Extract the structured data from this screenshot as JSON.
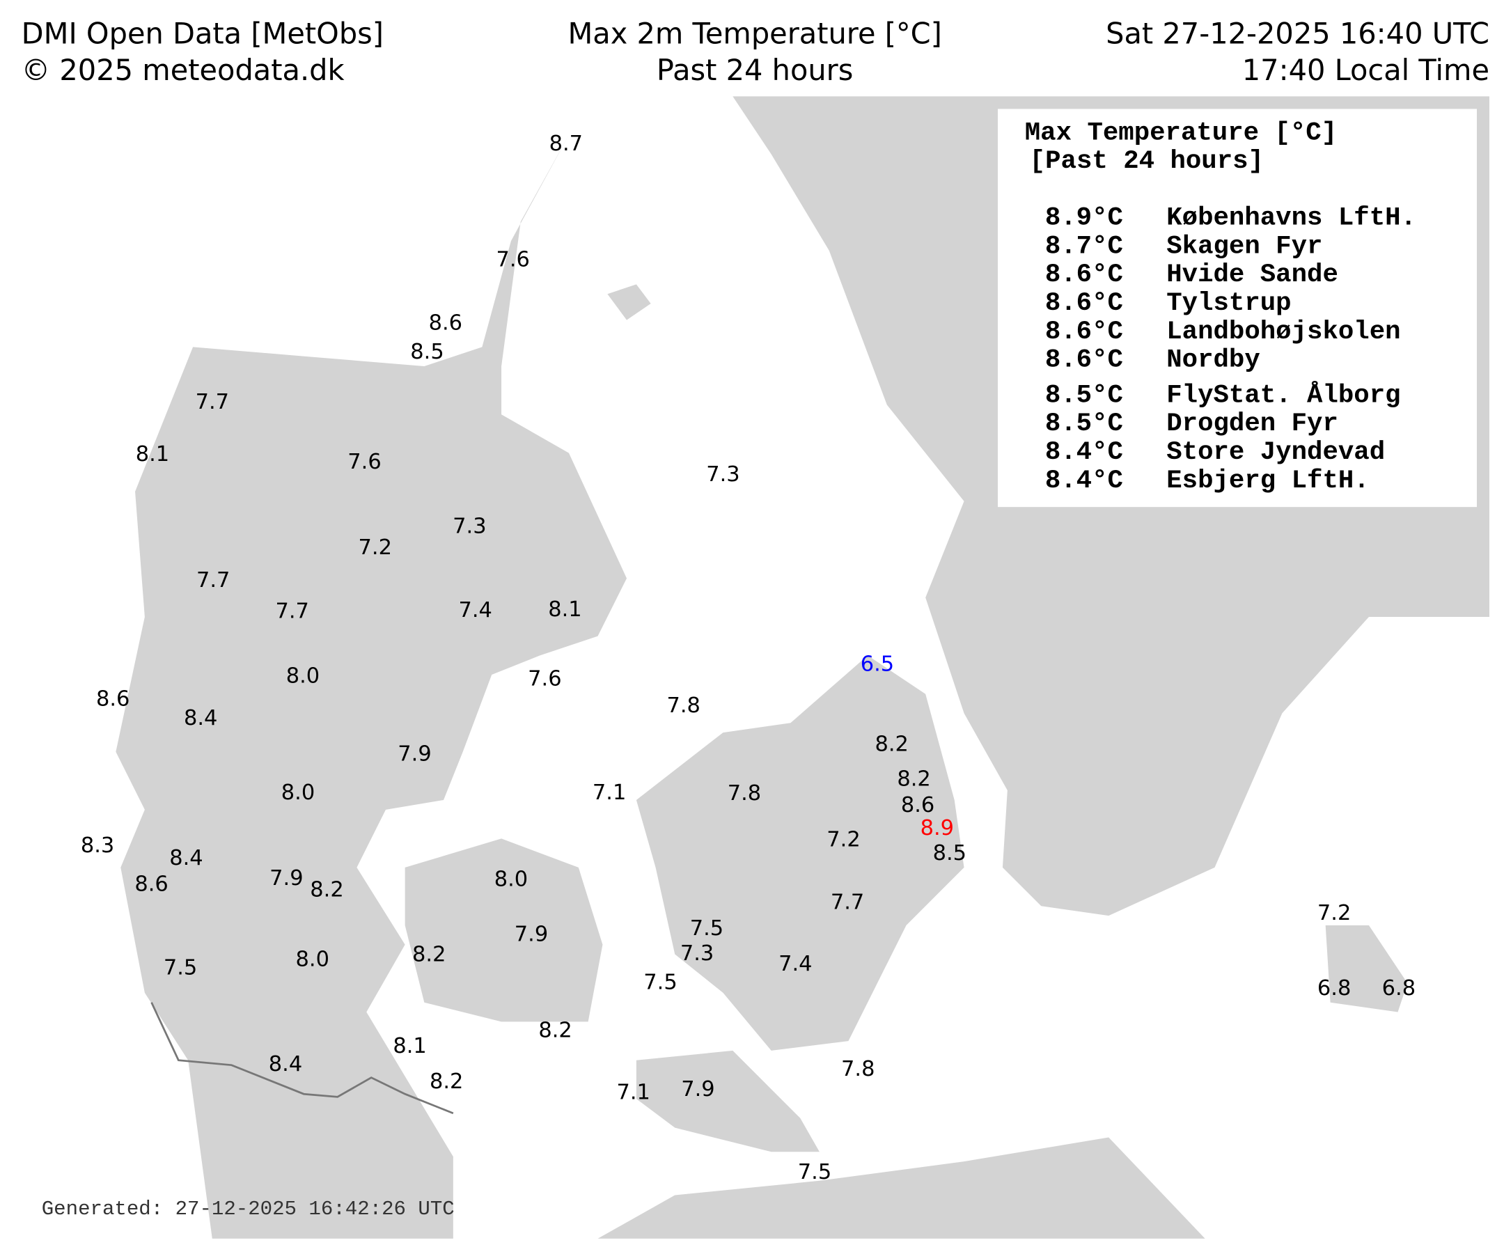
{
  "header": {
    "left": [
      "DMI Open Data [MetObs]",
      "© 2025 meteodata.dk"
    ],
    "center": [
      "Max 2m Temperature [°C]",
      "Past 24 hours"
    ],
    "right": [
      "Sat 27-12-2025 16:40 UTC",
      "17:40 Local Time"
    ]
  },
  "legend": {
    "title": [
      "Max Temperature [°C]",
      "[Past 24 hours]"
    ],
    "rows": [
      [
        "8.9°C",
        "Københavns LftH."
      ],
      [
        "8.7°C",
        "Skagen Fyr"
      ],
      [
        "8.6°C",
        "Hvide Sande"
      ],
      [
        "8.6°C",
        "Tylstrup"
      ],
      [
        "8.6°C",
        "Landbohøjskolen"
      ],
      [
        "8.6°C",
        "Nordby"
      ],
      [
        "8.5°C",
        "FlyStat. Ålborg"
      ],
      [
        "8.5°C",
        "Drogden Fyr"
      ],
      [
        "8.4°C",
        "Store Jyndevad"
      ],
      [
        "8.4°C",
        "Esbjerg LftH."
      ]
    ]
  },
  "stations": [
    {
      "label": "8.7"
    },
    {
      "label": "7.6"
    },
    {
      "label": "8.6"
    },
    {
      "label": "8.5"
    },
    {
      "label": "7.7"
    },
    {
      "label": "8.1"
    },
    {
      "label": "7.6"
    },
    {
      "label": "7.3"
    },
    {
      "label": "7.3"
    },
    {
      "label": "7.2"
    },
    {
      "label": "7.7"
    },
    {
      "label": "7.7"
    },
    {
      "label": "7.4"
    },
    {
      "label": "8.1"
    },
    {
      "label": "6.5",
      "color": "#0000ff"
    },
    {
      "label": "8.0"
    },
    {
      "label": "7.6"
    },
    {
      "label": "8.6"
    },
    {
      "label": "7.8"
    },
    {
      "label": "8.4"
    },
    {
      "label": "8.2"
    },
    {
      "label": "7.9"
    },
    {
      "label": "8.2"
    },
    {
      "label": "8.0"
    },
    {
      "label": "7.1"
    },
    {
      "label": "7.8"
    },
    {
      "label": "8.6"
    },
    {
      "label": "8.9",
      "color": "#ff0000"
    },
    {
      "label": "7.2"
    },
    {
      "label": "8.3"
    },
    {
      "label": "8.5"
    },
    {
      "label": "8.4"
    },
    {
      "label": "8.0"
    },
    {
      "label": "7.9"
    },
    {
      "label": "8.6"
    },
    {
      "label": "8.2"
    },
    {
      "label": "7.7"
    },
    {
      "label": "7.2"
    },
    {
      "label": "7.5"
    },
    {
      "label": "7.9"
    },
    {
      "label": "8.2"
    },
    {
      "label": "7.3"
    },
    {
      "label": "8.0"
    },
    {
      "label": "7.4"
    },
    {
      "label": "7.5"
    },
    {
      "label": "7.5"
    },
    {
      "label": "6.8"
    },
    {
      "label": "6.8"
    },
    {
      "label": "8.2"
    },
    {
      "label": "8.1"
    },
    {
      "label": "8.4"
    },
    {
      "label": "7.8"
    },
    {
      "label": "8.2"
    },
    {
      "label": "7.9"
    },
    {
      "label": "7.1"
    },
    {
      "label": "7.5"
    }
  ],
  "footer": "Generated: 27-12-2025 16:42:26 UTC"
}
